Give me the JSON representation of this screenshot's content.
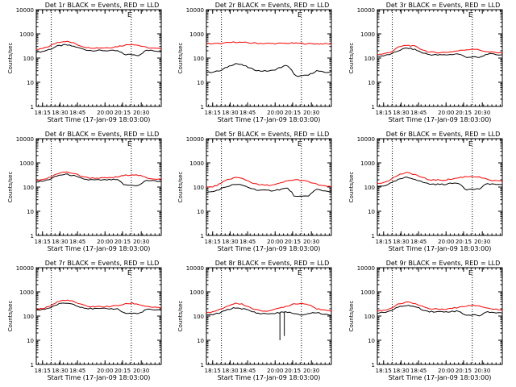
{
  "page": {
    "x_ticks": [
      "18:15",
      "18:30",
      "18:45",
      "20:00",
      "20:15",
      "20:30"
    ],
    "x_axis_label": "Start Time (17-Jan-09 18:03:00)",
    "y_axis_label": "Counts/sec",
    "y_ticks": [
      "1",
      "10",
      "100",
      "1000",
      "10000"
    ],
    "corner_mark": "E"
  },
  "chart_data": [
    {
      "type": "line",
      "title": "Det 1r BLACK = Events, RED = LLD",
      "xlabel": "Start Time (17-Jan-09 18:03:00)",
      "ylabel": "Counts/sec",
      "yscale": "log",
      "ylim": [
        1,
        10000
      ],
      "x_ticks": [
        "18:15",
        "18:30",
        "18:45",
        "20:00",
        "20:15",
        "20:30"
      ],
      "series": [
        {
          "color": "#000000",
          "values": [
            175,
            190,
            240,
            320,
            350,
            310,
            250,
            210,
            205,
            205,
            200,
            200,
            140,
            140,
            130,
            210,
            200,
            190
          ]
        },
        {
          "color": "#ff0000",
          "values": [
            220,
            250,
            330,
            460,
            500,
            420,
            320,
            270,
            265,
            265,
            270,
            300,
            340,
            380,
            330,
            270,
            250,
            240
          ]
        }
      ],
      "step_down": 0,
      "dropouts": []
    },
    {
      "type": "line",
      "title": "Det 2r BLACK = Events, RED = LLD",
      "xlabel": "Start Time (17-Jan-09 18:03:00)",
      "ylabel": "Counts/sec",
      "yscale": "log",
      "ylim": [
        1,
        10000
      ],
      "x_ticks": [
        "18:15",
        "18:30",
        "18:45",
        "20:00",
        "20:15",
        "20:30"
      ],
      "series": [
        {
          "color": "#000000",
          "values": [
            25,
            27,
            30,
            45,
            60,
            50,
            37,
            30,
            29,
            30,
            40,
            50,
            18,
            18,
            20,
            30,
            25,
            27
          ]
        },
        {
          "color": "#ff0000",
          "values": [
            400,
            390,
            400,
            430,
            460,
            440,
            420,
            410,
            400,
            400,
            400,
            410,
            410,
            400,
            390,
            390,
            390,
            380
          ]
        }
      ],
      "step_down": 0,
      "dropouts": []
    },
    {
      "type": "line",
      "title": "Det 3r BLACK = Events, RED = LLD",
      "xlabel": "Start Time (17-Jan-09 18:03:00)",
      "ylabel": "Counts/sec",
      "yscale": "log",
      "ylim": [
        1,
        10000
      ],
      "x_ticks": [
        "18:15",
        "18:30",
        "18:45",
        "20:00",
        "20:15",
        "20:30"
      ],
      "series": [
        {
          "color": "#000000",
          "values": [
            120,
            125,
            150,
            210,
            260,
            230,
            170,
            140,
            135,
            135,
            140,
            150,
            110,
            110,
            105,
            150,
            140,
            135
          ]
        },
        {
          "color": "#ff0000",
          "values": [
            140,
            150,
            190,
            290,
            340,
            310,
            230,
            175,
            170,
            170,
            180,
            200,
            220,
            240,
            210,
            180,
            170,
            160
          ]
        }
      ],
      "step_down": 0,
      "dropouts": []
    },
    {
      "type": "line",
      "title": "Det 4r BLACK = Events, RED = LLD",
      "xlabel": "Start Time (17-Jan-09 18:03:00)",
      "ylabel": "Counts/sec",
      "yscale": "log",
      "ylim": [
        1,
        10000
      ],
      "x_ticks": [
        "18:15",
        "18:30",
        "18:45",
        "20:00",
        "20:15",
        "20:30"
      ],
      "series": [
        {
          "color": "#000000",
          "values": [
            165,
            175,
            220,
            300,
            340,
            300,
            230,
            200,
            195,
            195,
            200,
            200,
            120,
            120,
            115,
            190,
            180,
            170
          ]
        },
        {
          "color": "#ff0000",
          "values": [
            180,
            200,
            260,
            380,
            420,
            370,
            290,
            240,
            235,
            235,
            240,
            260,
            300,
            330,
            300,
            240,
            220,
            210
          ]
        }
      ],
      "step_down": 0,
      "dropouts": []
    },
    {
      "type": "line",
      "title": "Det 5r BLACK = Events, RED = LLD",
      "xlabel": "Start Time (17-Jan-09 18:03:00)",
      "ylabel": "Counts/sec",
      "yscale": "log",
      "ylim": [
        1,
        10000
      ],
      "x_ticks": [
        "18:15",
        "18:30",
        "18:45",
        "20:00",
        "20:15",
        "20:30"
      ],
      "series": [
        {
          "color": "#000000",
          "values": [
            60,
            65,
            85,
            110,
            130,
            115,
            90,
            75,
            72,
            72,
            80,
            90,
            40,
            40,
            45,
            80,
            70,
            65
          ]
        },
        {
          "color": "#ff0000",
          "values": [
            95,
            105,
            140,
            210,
            250,
            220,
            160,
            125,
            120,
            120,
            140,
            180,
            200,
            190,
            160,
            130,
            110,
            100
          ]
        }
      ],
      "step_down": 0,
      "dropouts": []
    },
    {
      "type": "line",
      "title": "Det 6r BLACK = Events, RED = LLD",
      "xlabel": "Start Time (17-Jan-09 18:03:00)",
      "ylabel": "Counts/sec",
      "yscale": "log",
      "ylim": [
        1,
        10000
      ],
      "x_ticks": [
        "18:15",
        "18:30",
        "18:45",
        "20:00",
        "20:15",
        "20:30"
      ],
      "series": [
        {
          "color": "#000000",
          "values": [
            105,
            115,
            150,
            210,
            250,
            220,
            165,
            135,
            130,
            130,
            140,
            150,
            80,
            80,
            85,
            140,
            130,
            120
          ]
        },
        {
          "color": "#ff0000",
          "values": [
            140,
            160,
            220,
            330,
            390,
            340,
            250,
            200,
            195,
            195,
            210,
            240,
            270,
            280,
            250,
            200,
            180,
            170
          ]
        }
      ],
      "step_down": 0,
      "dropouts": []
    },
    {
      "type": "line",
      "title": "Det 7r BLACK = Events, RED = LLD",
      "xlabel": "Start Time (17-Jan-09 18:03:00)",
      "ylabel": "Counts/sec",
      "yscale": "log",
      "ylim": [
        1,
        10000
      ],
      "x_ticks": [
        "18:15",
        "18:30",
        "18:45",
        "20:00",
        "20:15",
        "20:30"
      ],
      "series": [
        {
          "color": "#000000",
          "values": [
            175,
            185,
            230,
            310,
            350,
            310,
            240,
            205,
            200,
            200,
            200,
            200,
            130,
            130,
            125,
            190,
            180,
            170
          ]
        },
        {
          "color": "#ff0000",
          "values": [
            190,
            210,
            270,
            400,
            460,
            400,
            300,
            250,
            245,
            245,
            250,
            270,
            310,
            340,
            300,
            250,
            230,
            210
          ]
        }
      ],
      "step_down": 0,
      "dropouts": []
    },
    {
      "type": "line",
      "title": "Det 8r BLACK = Events, RED = LLD",
      "xlabel": "Start Time (17-Jan-09 18:03:00)",
      "ylabel": "Counts/sec",
      "yscale": "log",
      "ylim": [
        1,
        10000
      ],
      "x_ticks": [
        "18:15",
        "18:30",
        "18:45",
        "20:00",
        "20:15",
        "20:30"
      ],
      "series": [
        {
          "color": "#000000",
          "values": [
            110,
            115,
            140,
            190,
            220,
            200,
            160,
            130,
            125,
            125,
            140,
            150,
            120,
            110,
            130,
            140,
            120,
            110
          ]
        },
        {
          "color": "#ff0000",
          "values": [
            140,
            150,
            190,
            270,
            340,
            300,
            220,
            170,
            165,
            170,
            220,
            260,
            330,
            330,
            300,
            200,
            170,
            160
          ]
        }
      ],
      "step_down": 0,
      "dropouts": [
        {
          "x_index": 10,
          "min": 10
        },
        {
          "x_index": 10.6,
          "min": 15
        }
      ]
    },
    {
      "type": "line",
      "title": "Det 9r BLACK = Events, RED = LLD",
      "xlabel": "Start Time (17-Jan-09 18:03:00)",
      "ylabel": "Counts/sec",
      "yscale": "log",
      "ylim": [
        1,
        10000
      ],
      "x_ticks": [
        "18:15",
        "18:30",
        "18:45",
        "20:00",
        "20:15",
        "20:30"
      ],
      "series": [
        {
          "color": "#000000",
          "values": [
            135,
            140,
            175,
            240,
            280,
            250,
            190,
            155,
            150,
            150,
            155,
            160,
            110,
            110,
            105,
            150,
            140,
            135
          ]
        },
        {
          "color": "#ff0000",
          "values": [
            160,
            175,
            220,
            320,
            380,
            340,
            260,
            200,
            195,
            195,
            205,
            230,
            260,
            290,
            260,
            210,
            190,
            180
          ]
        }
      ],
      "step_down": 0,
      "dropouts": []
    }
  ]
}
